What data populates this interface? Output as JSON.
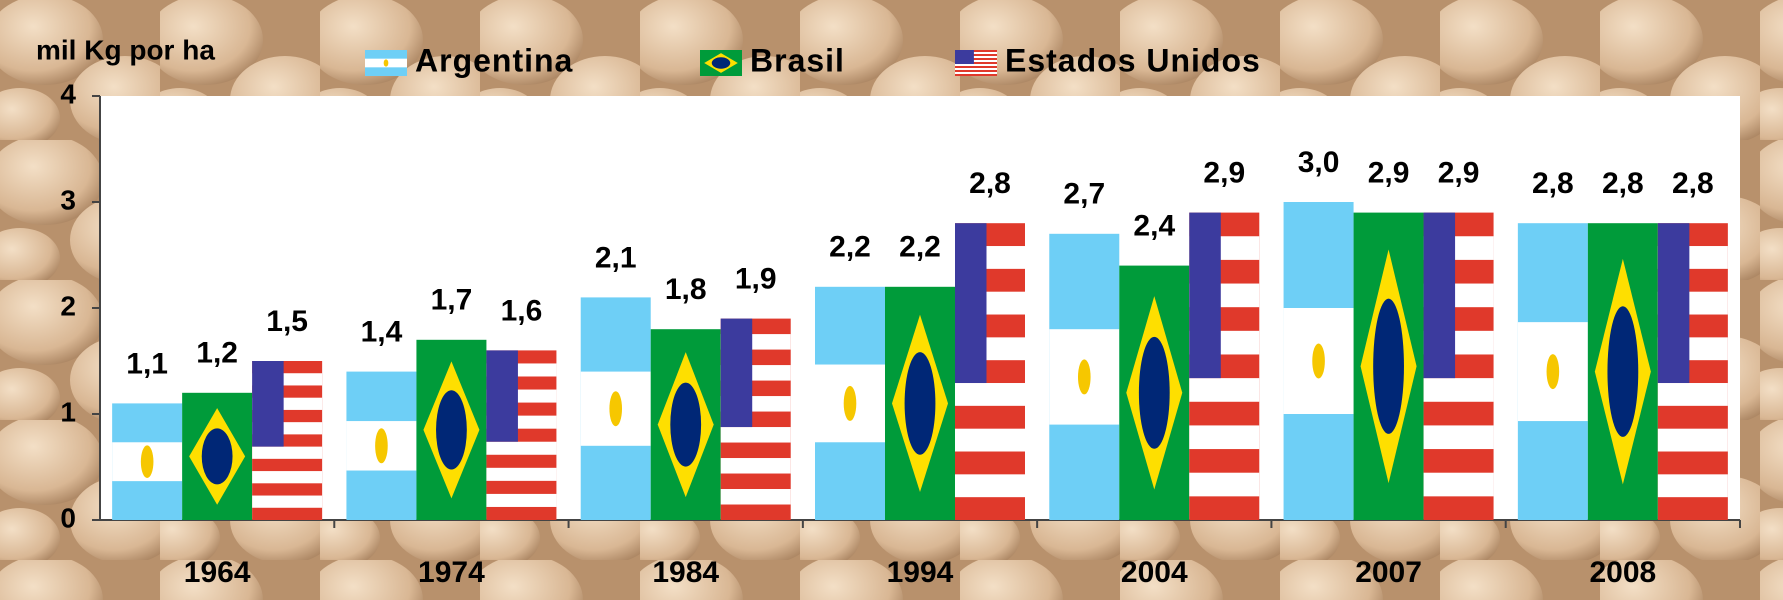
{
  "chart_data": {
    "type": "bar",
    "y_label": "mil Kg por ha",
    "categories": [
      "1964",
      "1974",
      "1984",
      "1994",
      "2004",
      "2007",
      "2008"
    ],
    "series": [
      {
        "name": "Argentina",
        "color": "#6ecff6",
        "values": [
          1.1,
          1.4,
          2.1,
          2.2,
          2.7,
          3.0,
          2.8
        ],
        "value_labels": [
          "1,1",
          "1,4",
          "2,1",
          "2,2",
          "2,7",
          "3,0",
          "2,8"
        ]
      },
      {
        "name": "Brasil",
        "color": "#009b3a",
        "values": [
          1.2,
          1.7,
          1.8,
          2.2,
          2.4,
          2.9,
          2.8
        ],
        "value_labels": [
          "1,2",
          "1,7",
          "1,8",
          "2,2",
          "2,4",
          "2,9",
          "2,8"
        ]
      },
      {
        "name": "Estados Unidos",
        "color": "#e0392b",
        "values": [
          1.5,
          1.6,
          1.9,
          2.8,
          2.9,
          2.9,
          2.8
        ],
        "value_labels": [
          "1,5",
          "1,6",
          "1,9",
          "2,8",
          "2,9",
          "2,9",
          "2,8"
        ]
      }
    ],
    "ylim": [
      0,
      4
    ],
    "yticks": [
      0,
      1,
      2,
      3,
      4
    ]
  }
}
